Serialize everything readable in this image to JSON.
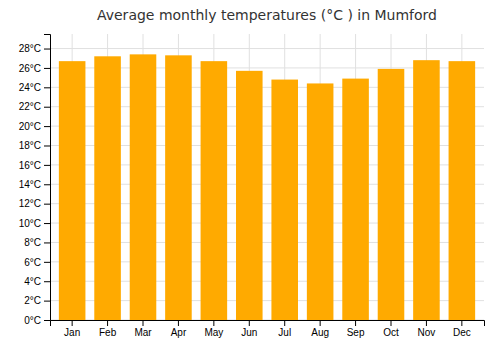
{
  "chart_data": {
    "type": "bar",
    "title": "Average monthly temperatures (°C ) in Mumford",
    "categories": [
      "Jan",
      "Feb",
      "Mar",
      "Apr",
      "May",
      "Jun",
      "Jul",
      "Aug",
      "Sep",
      "Oct",
      "Nov",
      "Dec"
    ],
    "values": [
      26.7,
      27.2,
      27.4,
      27.3,
      26.7,
      25.7,
      24.8,
      24.4,
      24.9,
      25.9,
      26.8,
      26.7
    ],
    "color": "#FFAA00",
    "ylim": [
      0,
      29.5
    ],
    "yticks": [
      {
        "value": 0,
        "label": "0°C"
      },
      {
        "value": 2,
        "label": "2°C"
      },
      {
        "value": 4,
        "label": "4°C"
      },
      {
        "value": 6,
        "label": "6°C"
      },
      {
        "value": 8,
        "label": "8°C"
      },
      {
        "value": 10,
        "label": "10°C"
      },
      {
        "value": 12,
        "label": "12°C"
      },
      {
        "value": 14,
        "label": "14°C"
      },
      {
        "value": 16,
        "label": "16°C"
      },
      {
        "value": 18,
        "label": "18°C"
      },
      {
        "value": 20,
        "label": "20°C"
      },
      {
        "value": 22,
        "label": "22°C"
      },
      {
        "value": 24,
        "label": "24°C"
      },
      {
        "value": 26,
        "label": "26°C"
      },
      {
        "value": 28,
        "label": "28°C"
      }
    ],
    "grid": true
  }
}
